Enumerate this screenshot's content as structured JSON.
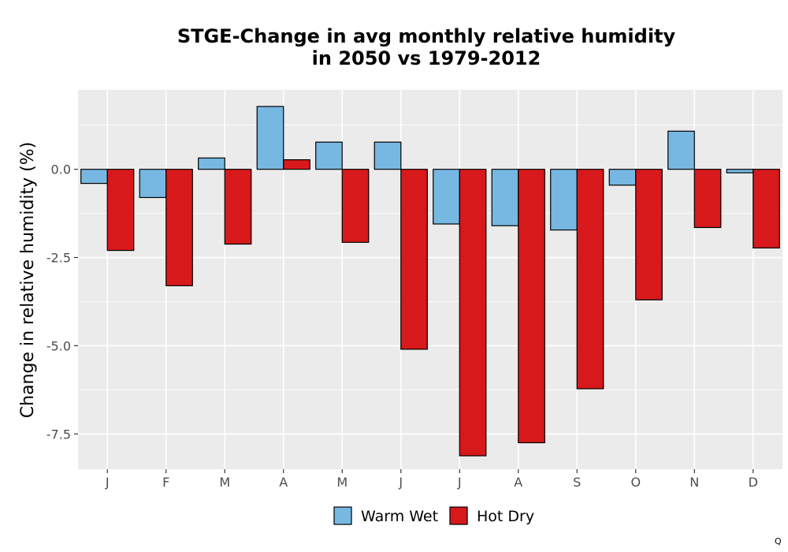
{
  "chart_data": {
    "type": "bar",
    "title": "STGE-Change in avg monthly relative humidity\nin 2050 vs 1979-2012",
    "xlabel": "",
    "ylabel": "Change in relative humidity (%)",
    "categories": [
      "J",
      "F",
      "M",
      "A",
      "M",
      "J",
      "J",
      "A",
      "S",
      "O",
      "N",
      "D"
    ],
    "series": [
      {
        "name": "Warm Wet",
        "color": "#76b8e2",
        "values": [
          -0.4,
          -0.8,
          0.32,
          1.78,
          0.77,
          0.77,
          -1.55,
          -1.6,
          -1.72,
          -0.45,
          1.08,
          -0.1
        ]
      },
      {
        "name": "Hot Dry",
        "color": "#d7191c",
        "values": [
          -2.3,
          -3.3,
          -2.12,
          0.27,
          -2.07,
          -5.1,
          -8.12,
          -7.75,
          -6.22,
          -3.7,
          -1.65,
          -2.23
        ]
      }
    ],
    "ylim": [
      -8.5,
      2.25
    ],
    "yticks": [
      0.0,
      -2.5,
      -5.0,
      -7.5
    ],
    "ytick_labels": [
      "0.0",
      "-2.5",
      "-5.0",
      "-7.5"
    ],
    "grid": true,
    "legend_position": "bottom"
  },
  "corner_mark": "Q"
}
